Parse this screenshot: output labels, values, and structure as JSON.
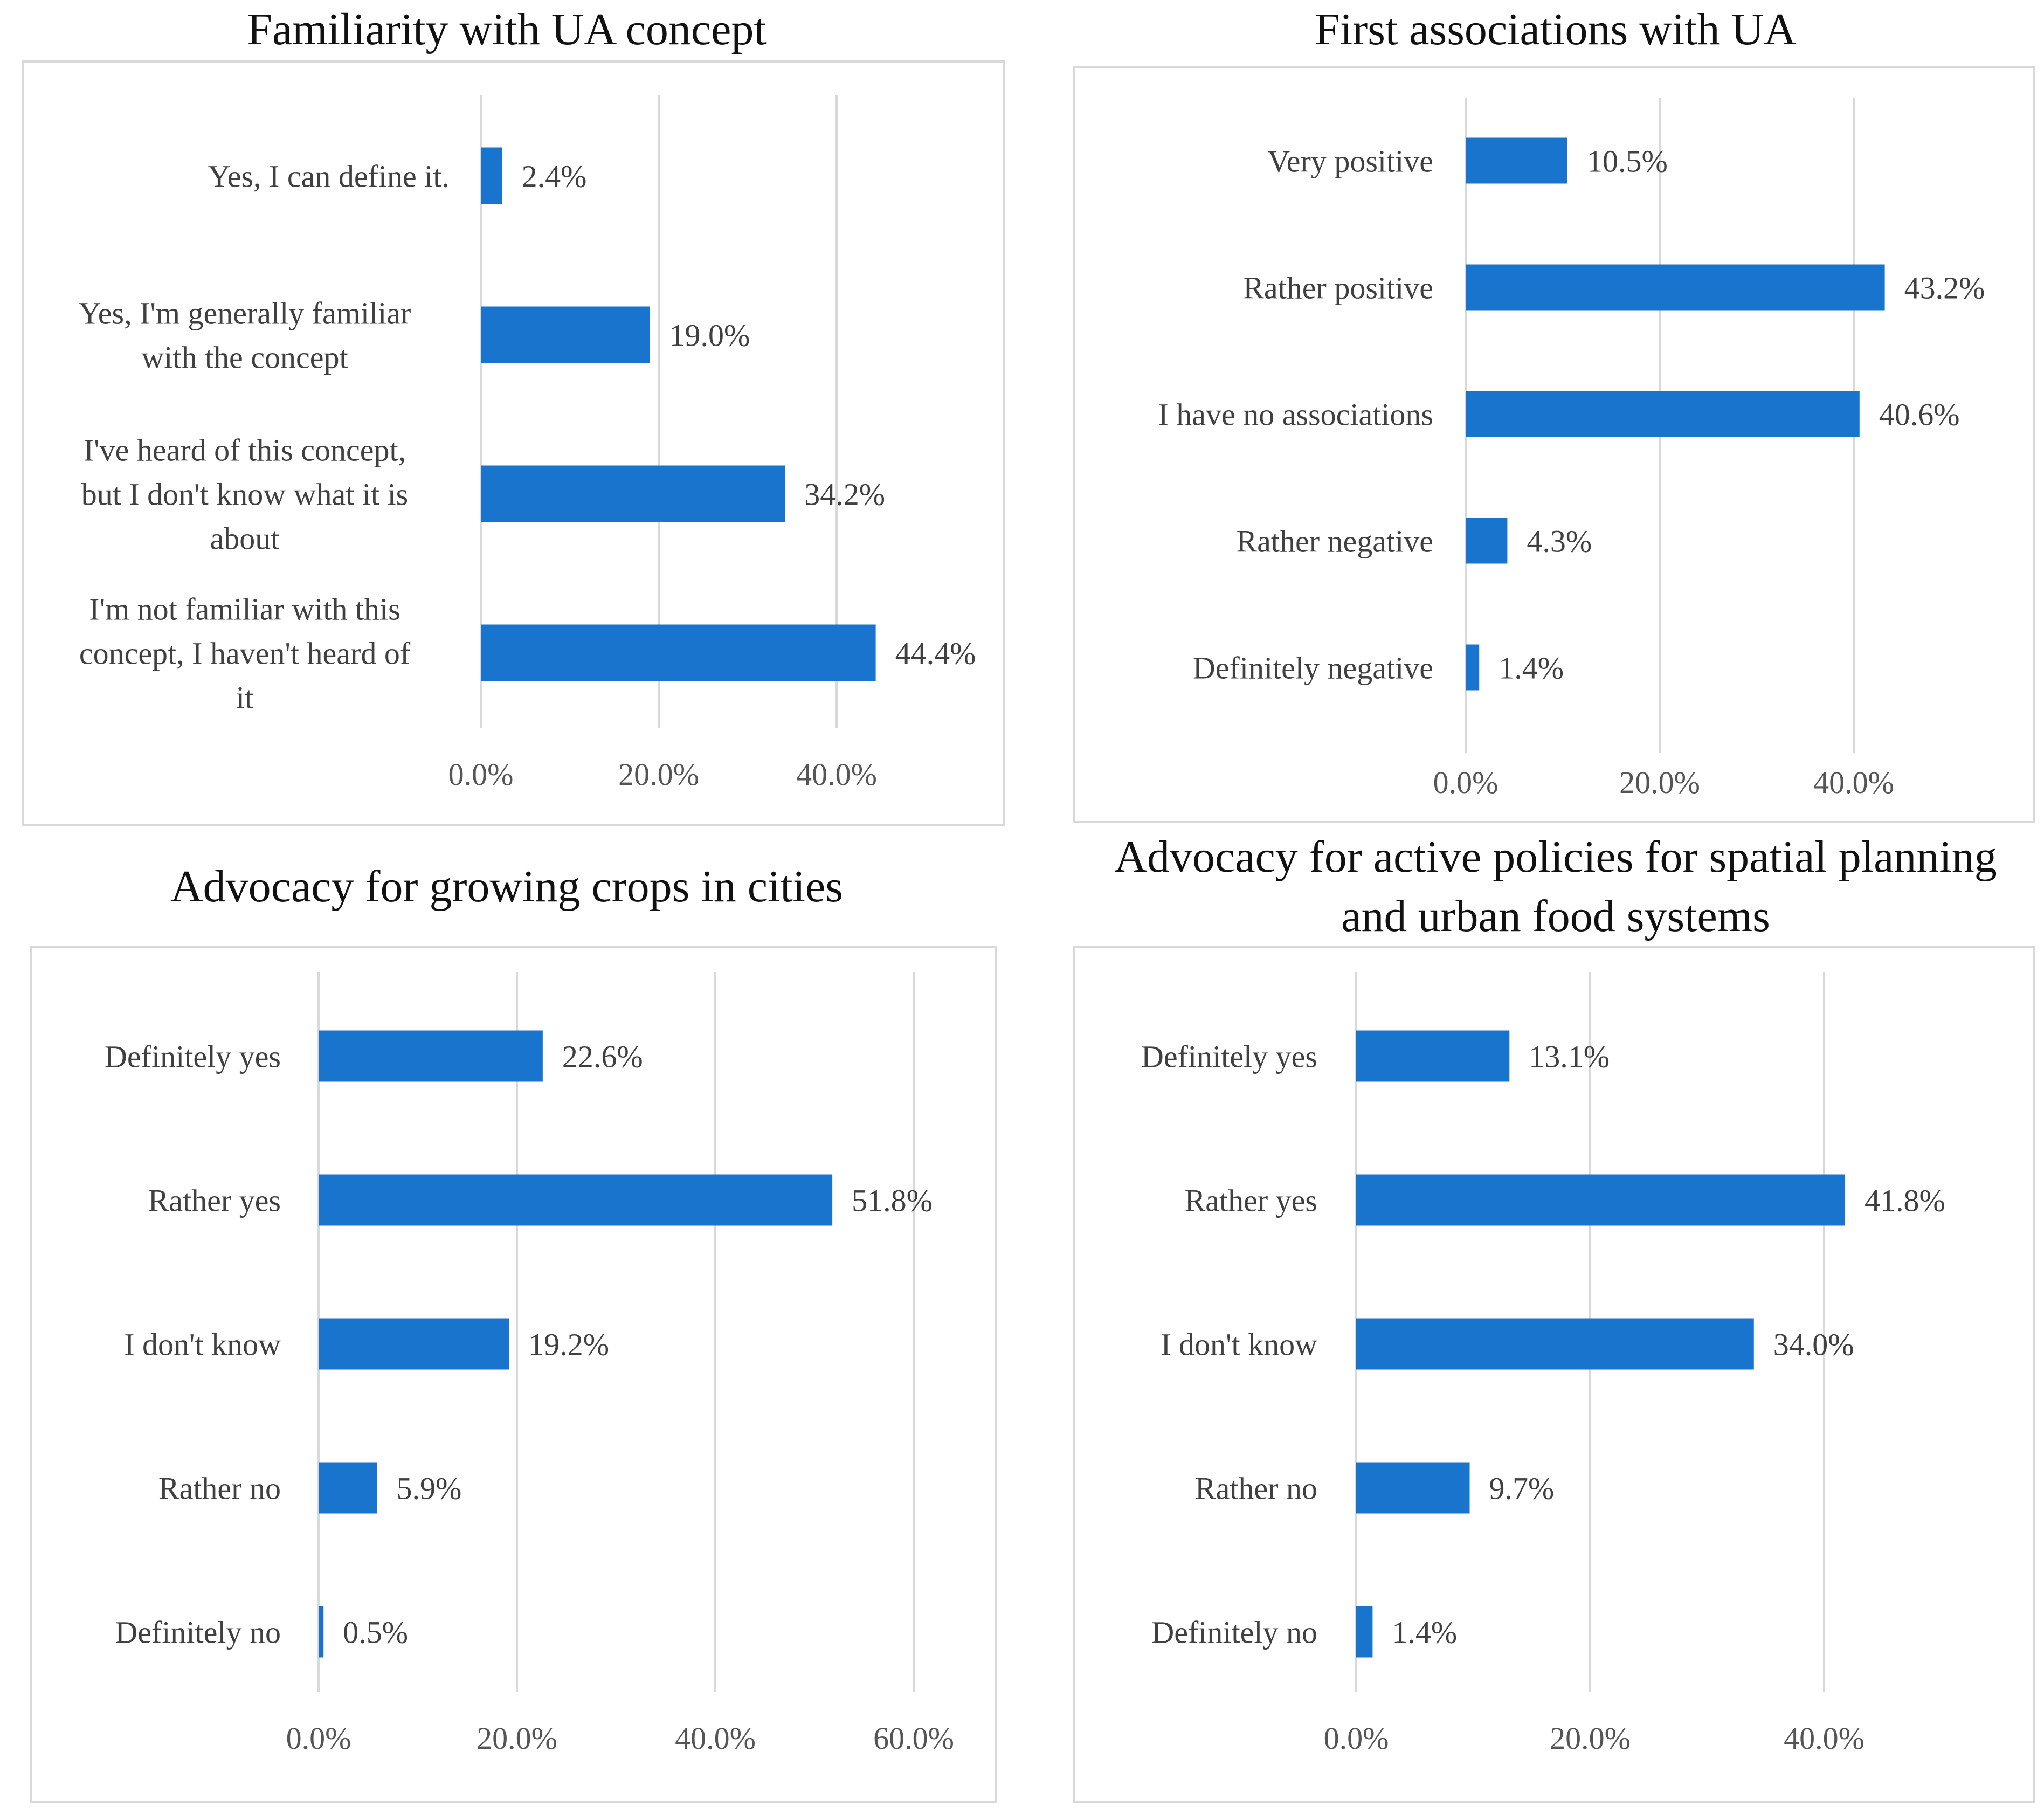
{
  "chart_data": [
    {
      "type": "bar",
      "orientation": "horizontal",
      "title": "Familiarity with UA concept",
      "categories": [
        "Yes, I can define it.",
        "Yes, I'm generally familiar with the concept",
        "I've heard of this concept, but I don't know what it is about",
        "I'm not familiar with this concept, I haven't heard of it"
      ],
      "category_lines": [
        [
          "Yes, I can define it."
        ],
        [
          "Yes, I'm generally familiar",
          "with the concept"
        ],
        [
          "I've heard of this concept,",
          "but I don't know what it is",
          "about"
        ],
        [
          "I'm not familiar with this",
          "concept, I haven't heard of",
          "it"
        ]
      ],
      "values": [
        2.4,
        19.0,
        34.2,
        44.4
      ],
      "data_labels": [
        "2.4%",
        "19.0%",
        "34.2%",
        "44.4%"
      ],
      "xlim": [
        0,
        55
      ],
      "ticks": [
        0,
        20,
        40
      ],
      "tick_labels": [
        "0.0%",
        "20.0%",
        "40.0%"
      ],
      "color": "#1874CD",
      "grid": true
    },
    {
      "type": "bar",
      "orientation": "horizontal",
      "title": "First associations with UA",
      "categories": [
        "Very positive",
        "Rather positive",
        "I have no associations",
        "Rather negative",
        "Definitely negative"
      ],
      "category_lines": [
        [
          "Very positive"
        ],
        [
          "Rather positive"
        ],
        [
          "I have no associations"
        ],
        [
          "Rather negative"
        ],
        [
          "Definitely negative"
        ]
      ],
      "values": [
        10.5,
        43.2,
        40.6,
        4.3,
        1.4
      ],
      "data_labels": [
        "10.5%",
        "43.2%",
        "40.6%",
        "4.3%",
        "1.4%"
      ],
      "xlim": [
        0,
        55
      ],
      "ticks": [
        0,
        20,
        40
      ],
      "tick_labels": [
        "0.0%",
        "20.0%",
        "40.0%"
      ],
      "color": "#1874CD",
      "grid": true
    },
    {
      "type": "bar",
      "orientation": "horizontal",
      "title": "Advocacy for growing crops in cities",
      "categories": [
        "Definitely yes",
        "Rather yes",
        "I don't know",
        "Rather no",
        "Definitely no"
      ],
      "category_lines": [
        [
          "Definitely yes"
        ],
        [
          "Rather yes"
        ],
        [
          "I don't know"
        ],
        [
          "Rather no"
        ],
        [
          "Definitely no"
        ]
      ],
      "values": [
        22.6,
        51.8,
        19.2,
        5.9,
        0.5
      ],
      "data_labels": [
        "22.6%",
        "51.8%",
        "19.2%",
        "5.9%",
        "0.5%"
      ],
      "xlim": [
        0,
        65
      ],
      "ticks": [
        0,
        20,
        40,
        60
      ],
      "tick_labels": [
        "0.0%",
        "20.0%",
        "40.0%",
        "60.0%"
      ],
      "color": "#1874CD",
      "grid": true
    },
    {
      "type": "bar",
      "orientation": "horizontal",
      "title": "Advocacy for active policies for spatial planning and urban food systems",
      "title_lines": [
        "Advocacy for active policies for spatial planning",
        "and urban food systems"
      ],
      "categories": [
        "Definitely yes",
        "Rather yes",
        "I don't know",
        "Rather no",
        "Definitely no"
      ],
      "category_lines": [
        [
          "Definitely yes"
        ],
        [
          "Rather yes"
        ],
        [
          "I don't know"
        ],
        [
          "Rather no"
        ],
        [
          "Definitely no"
        ]
      ],
      "values": [
        13.1,
        41.8,
        34.0,
        9.7,
        1.4
      ],
      "data_labels": [
        "13.1%",
        "41.8%",
        "34.0%",
        "9.7%",
        "1.4%"
      ],
      "xlim": [
        0,
        55
      ],
      "ticks": [
        0,
        20,
        40
      ],
      "tick_labels": [
        "0.0%",
        "20.0%",
        "40.0%"
      ],
      "color": "#1874CD",
      "grid": true
    }
  ]
}
